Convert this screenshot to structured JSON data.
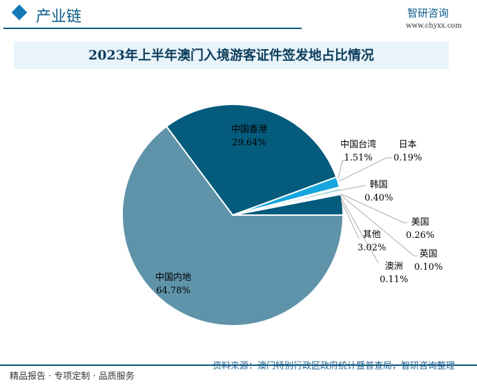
{
  "header": {
    "section_title": "产业链",
    "brand": "智研咨询",
    "website": "www.chyxx.com"
  },
  "footer": {
    "left": "精品报告 · 专项定制 · 品质服务",
    "source": "资料来源：澳门特别行政区政府统计暨普查局，智研咨询整理"
  },
  "chart_data": {
    "type": "pie",
    "title": "2023年上半年澳门入境游客证件签发地占比情况",
    "unit": "%",
    "slices": [
      {
        "name": "其他",
        "value": 3.02,
        "label": "3.02%",
        "color": "#055b7c"
      },
      {
        "name": "澳洲",
        "value": 0.11,
        "label": "0.11%",
        "color": "#f4d9d9"
      },
      {
        "name": "英国",
        "value": 0.1,
        "label": "0.10%",
        "color": "#f0f0f0"
      },
      {
        "name": "美国",
        "value": 0.26,
        "label": "0.26%",
        "color": "#cfe3ea"
      },
      {
        "name": "韩国",
        "value": 0.4,
        "label": "0.40%",
        "color": "#8ed0cf"
      },
      {
        "name": "日本",
        "value": 0.19,
        "label": "0.19%",
        "color": "#d7ecf4"
      },
      {
        "name": "中国台湾",
        "value": 1.51,
        "label": "1.51%",
        "color": "#16a5dd"
      },
      {
        "name": "中国香港",
        "value": 29.64,
        "label": "29.64%",
        "color": "#055b7c"
      },
      {
        "name": "中国内地",
        "value": 64.78,
        "label": "64.78%",
        "color": "#5f93aa"
      }
    ]
  }
}
